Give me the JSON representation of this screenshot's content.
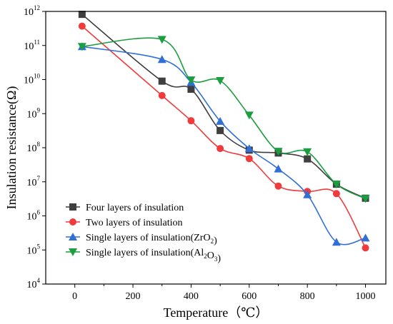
{
  "chart_data": {
    "type": "line",
    "xlabel": "Temperature（℃）",
    "ylabel": "Insulation resistance(Ω)",
    "xlim": [
      -100,
      1070
    ],
    "ylim": [
      10000,
      1000000000000
    ],
    "yscale": "log",
    "x_ticks": [
      0,
      200,
      400,
      600,
      800,
      1000
    ],
    "y_ticks": [
      {
        "value": 10000,
        "base": "10",
        "exp": "4"
      },
      {
        "value": 100000,
        "base": "10",
        "exp": "5"
      },
      {
        "value": 1000000,
        "base": "10",
        "exp": "6"
      },
      {
        "value": 10000000,
        "base": "10",
        "exp": "7"
      },
      {
        "value": 100000000,
        "base": "10",
        "exp": "8"
      },
      {
        "value": 1000000000,
        "base": "10",
        "exp": "9"
      },
      {
        "value": 10000000000,
        "base": "10",
        "exp": "10"
      },
      {
        "value": 100000000000,
        "base": "10",
        "exp": "11"
      },
      {
        "value": 1000000000000,
        "base": "10",
        "exp": "12"
      }
    ],
    "grid": false,
    "legend_position": "bottom-left",
    "series": [
      {
        "name": "Four layers of insulation",
        "legend_parts": [
          {
            "text": "Four layers of insulation",
            "sub": false
          }
        ],
        "color": "#3f3f3f",
        "marker": "square",
        "x": [
          25,
          300,
          400,
          500,
          600,
          700,
          800,
          900,
          1000
        ],
        "y": [
          820000000000,
          9000000000,
          5200000000,
          320000000,
          85000000,
          70000000,
          47000000,
          8500000,
          3300000
        ]
      },
      {
        "name": "Two layers of insulation",
        "legend_parts": [
          {
            "text": "Two layers of insulation",
            "sub": false
          }
        ],
        "color": "#ef3b3b",
        "marker": "circle",
        "x": [
          25,
          300,
          400,
          500,
          600,
          700,
          800,
          900,
          1000
        ],
        "y": [
          370000000000,
          3400000000,
          620000000,
          95000000,
          48000000,
          7500000,
          5200000,
          4500000,
          115000
        ]
      },
      {
        "name": "Single layers of insulation(ZrO2)",
        "legend_parts": [
          {
            "text": "Single layers of insulation(ZrO",
            "sub": false
          },
          {
            "text": "2",
            "sub": true
          },
          {
            "text": ")",
            "sub": false
          }
        ],
        "color": "#2f6fd6",
        "marker": "triangle-up",
        "x": [
          25,
          300,
          400,
          500,
          600,
          700,
          800,
          900,
          1000
        ],
        "y": [
          93000000000,
          39000000000,
          8300000000,
          600000000,
          95000000,
          24000000,
          4200000,
          170000,
          225000
        ]
      },
      {
        "name": "Single layers of insulation(Al2O3)",
        "legend_parts": [
          {
            "text": "Single layers of insulation(Al",
            "sub": false
          },
          {
            "text": "2",
            "sub": true
          },
          {
            "text": "O",
            "sub": false
          },
          {
            "text": "3",
            "sub": true
          },
          {
            "text": ")",
            "sub": false
          }
        ],
        "color": "#1a9e3f",
        "marker": "triangle-down",
        "x": [
          25,
          300,
          400,
          500,
          600,
          700,
          800,
          900,
          1000
        ],
        "y": [
          93000000000,
          150000000000,
          9700000000,
          9300000000,
          900000000,
          78000000,
          76000000,
          8500000,
          3200000
        ]
      }
    ]
  }
}
